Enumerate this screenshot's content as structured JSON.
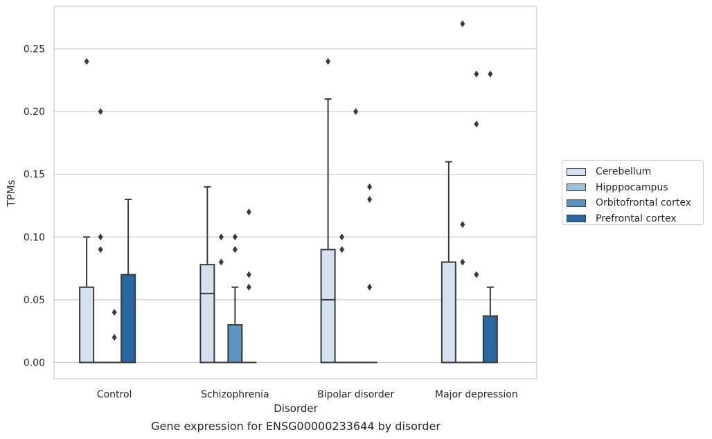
{
  "chart_data": {
    "type": "box",
    "xlabel": "Disorder",
    "ylabel": "TPMs",
    "caption": "Gene expression for ENSG00000233644 by disorder",
    "categories": [
      "Control",
      "Schizophrenia",
      "Bipolar disorder",
      "Major depression"
    ],
    "ylim": [
      -0.013,
      0.284
    ],
    "yticks": [
      "0.00",
      "0.05",
      "0.10",
      "0.15",
      "0.20",
      "0.25"
    ],
    "ytick_values": [
      0,
      0.05,
      0.1,
      0.15,
      0.2,
      0.25
    ],
    "grid": "horizontal",
    "legend_position": "right",
    "series": [
      {
        "name": "Cerebellum",
        "color": "#d3e1f0",
        "boxes": [
          {
            "q1": 0,
            "median": 0,
            "q3": 0.06,
            "whisker_low": 0,
            "whisker_high": 0.1,
            "outliers": [
              0.24
            ]
          },
          {
            "q1": 0,
            "median": 0.055,
            "q3": 0.078,
            "whisker_low": 0,
            "whisker_high": 0.14,
            "outliers": []
          },
          {
            "q1": 0,
            "median": 0.05,
            "q3": 0.09,
            "whisker_low": 0,
            "whisker_high": 0.21,
            "outliers": [
              0.24
            ]
          },
          {
            "q1": 0,
            "median": 0,
            "q3": 0.08,
            "whisker_low": 0,
            "whisker_high": 0.16,
            "outliers": []
          }
        ]
      },
      {
        "name": "Hipppocampus",
        "color": "#9dc0db",
        "boxes": [
          {
            "q1": 0,
            "median": 0,
            "q3": 0,
            "whisker_low": 0,
            "whisker_high": 0,
            "outliers": [
              0.2,
              0.1,
              0.09
            ]
          },
          {
            "q1": 0,
            "median": 0,
            "q3": 0,
            "whisker_low": 0,
            "whisker_high": 0,
            "outliers": [
              0.1,
              0.08
            ]
          },
          {
            "q1": 0,
            "median": 0,
            "q3": 0,
            "whisker_low": 0,
            "whisker_high": 0,
            "outliers": [
              0.1,
              0.09
            ]
          },
          {
            "q1": 0,
            "median": 0,
            "q3": 0,
            "whisker_low": 0,
            "whisker_high": 0,
            "outliers": [
              0.27,
              0.11,
              0.08
            ]
          }
        ]
      },
      {
        "name": "Orbitofrontal cortex",
        "color": "#5a95c0",
        "boxes": [
          {
            "q1": 0,
            "median": 0,
            "q3": 0,
            "whisker_low": 0,
            "whisker_high": 0,
            "outliers": [
              0.04,
              0.02
            ]
          },
          {
            "q1": 0,
            "median": 0,
            "q3": 0.03,
            "whisker_low": 0,
            "whisker_high": 0.06,
            "outliers": [
              0.1,
              0.09
            ]
          },
          {
            "q1": 0,
            "median": 0,
            "q3": 0,
            "whisker_low": 0,
            "whisker_high": 0,
            "outliers": [
              0.2
            ]
          },
          {
            "q1": 0,
            "median": 0,
            "q3": 0,
            "whisker_low": 0,
            "whisker_high": 0,
            "outliers": [
              0.23,
              0.19,
              0.07
            ]
          }
        ]
      },
      {
        "name": "Prefrontal cortex",
        "color": "#2a68a3",
        "boxes": [
          {
            "q1": 0,
            "median": 0,
            "q3": 0.07,
            "whisker_low": 0,
            "whisker_high": 0.13,
            "outliers": []
          },
          {
            "q1": 0,
            "median": 0,
            "q3": 0,
            "whisker_low": 0,
            "whisker_high": 0,
            "outliers": [
              0.12,
              0.07,
              0.06
            ]
          },
          {
            "q1": 0,
            "median": 0,
            "q3": 0,
            "whisker_low": 0,
            "whisker_high": 0,
            "outliers": [
              0.14,
              0.13,
              0.06
            ]
          },
          {
            "q1": 0,
            "median": 0,
            "q3": 0.037,
            "whisker_low": 0,
            "whisker_high": 0.06,
            "outliers": [
              0.23
            ]
          }
        ]
      }
    ]
  }
}
